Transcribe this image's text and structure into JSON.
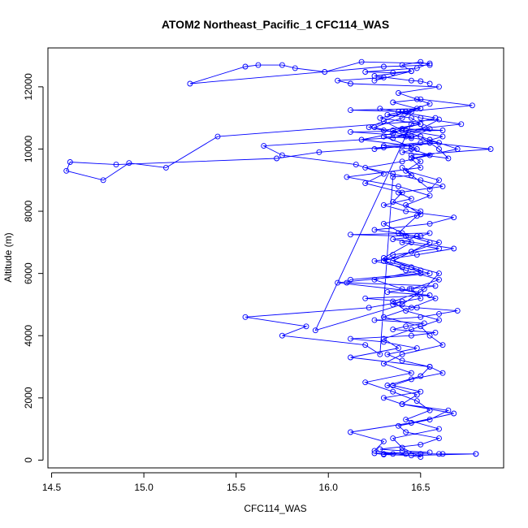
{
  "chart_data": {
    "type": "line",
    "title": "ATOM2 Northeast_Pacific_1 CFC114_WAS",
    "xlabel": "CFC114_WAS",
    "ylabel": "Altitude (m)",
    "xlim": [
      14.48,
      16.95
    ],
    "ylim": [
      -250,
      13250
    ],
    "x_ticks": [
      14.5,
      15.0,
      15.5,
      16.0,
      16.5
    ],
    "x_tick_labels": [
      "14.5",
      "15.0",
      "15.5",
      "16.0",
      "16.5"
    ],
    "y_ticks": [
      0,
      2000,
      4000,
      6000,
      8000,
      10000,
      12000
    ],
    "y_tick_labels": [
      "0",
      "2000",
      "4000",
      "6000",
      "8000",
      "10000",
      "12000"
    ],
    "grid": false,
    "legend": "none",
    "series_color": "#0000ff",
    "marker": "open-circle",
    "series": [
      {
        "x": [
          16.8,
          16.6,
          16.5,
          16.42,
          16.35,
          16.3,
          16.5,
          16.62,
          16.8,
          16.45,
          16.3,
          16.25,
          16.55,
          16.4,
          16.28,
          16.5,
          16.6,
          16.42,
          16.38,
          16.55,
          16.65,
          16.4,
          16.3,
          16.5,
          16.35,
          16.45,
          16.62,
          16.55,
          16.4,
          16.32,
          16.48,
          16.3,
          16.12,
          16.45,
          16.58,
          16.35,
          16.42,
          16.52,
          16.25,
          16.5,
          16.6,
          16.7,
          16.48,
          16.35,
          16.4,
          16.2,
          16.55,
          16.32,
          16.44,
          16.58,
          16.1,
          16.12,
          16.5,
          16.45,
          16.3,
          16.35,
          16.6,
          16.4,
          16.48,
          16.25,
          16.55,
          16.68,
          16.42,
          16.3,
          16.45,
          16.38,
          16.62,
          16.5,
          16.35,
          16.2,
          16.4,
          16.55,
          16.45,
          16.3,
          16.5,
          16.62,
          16.42,
          16.72,
          16.5,
          16.38,
          16.28,
          16.58,
          16.45,
          15.93,
          16.4,
          16.52,
          16.6,
          16.3,
          16.45,
          16.42,
          16.12,
          16.55,
          16.5,
          16.35,
          16.68,
          16.48,
          16.25,
          16.4,
          16.55,
          16.05,
          16.5,
          16.35,
          16.42,
          16.6,
          16.45,
          16.3,
          16.38,
          16.12,
          16.55,
          16.5,
          16.32,
          16.48,
          16.4,
          16.68,
          16.45,
          16.12,
          16.3,
          16.25,
          16.5,
          16.4,
          16.35,
          16.6,
          16.42,
          16.55,
          16.48,
          16.35,
          16.2,
          16.45,
          16.3,
          16.4,
          16.62,
          16.55,
          16.5,
          16.3,
          16.45,
          16.58,
          16.4,
          16.25,
          16.5,
          16.35,
          16.45,
          16.6,
          16.4,
          16.3,
          16.5,
          16.42,
          16.55,
          16.38,
          16.1,
          16.5,
          16.45,
          16.7,
          16.55,
          16.4,
          16.3,
          16.42,
          16.78,
          16.5,
          16.35,
          16.48,
          16.4,
          16.25,
          16.45,
          15.65,
          15.75,
          16.15,
          16.3,
          16.2,
          16.4,
          16.35,
          16.5,
          16.48,
          16.38,
          16.55,
          16.45,
          16.3,
          16.42,
          16.6,
          16.45,
          16.5,
          16.22,
          15.55,
          15.88,
          15.75,
          16.2,
          16.28,
          16.35,
          16.45,
          16.4,
          16.55,
          16.6,
          16.42,
          16.5,
          16.45,
          16.88,
          16.55,
          16.4,
          15.95,
          15.72,
          14.85,
          14.6,
          14.58,
          14.78,
          14.92,
          15.12,
          15.4,
          16.6,
          16.52,
          16.35,
          16.55,
          16.45,
          16.3,
          16.48,
          16.4,
          16.65,
          16.6,
          16.55,
          16.5,
          16.12,
          16.62,
          16.4,
          16.35,
          16.18,
          16.45,
          16.3,
          16.25,
          16.6,
          16.42,
          16.35,
          16.5,
          16.28,
          16.45,
          16.12,
          16.5,
          16.4,
          16.32,
          16.45,
          16.5,
          16.3,
          16.22,
          16.42,
          16.55,
          16.48,
          16.38,
          16.6,
          16.12,
          16.05,
          16.3,
          16.25,
          16.45,
          16.4,
          16.5,
          16.55,
          16.3,
          15.25,
          15.55,
          15.62,
          15.75,
          15.82,
          15.98,
          16.18,
          16.55,
          16.48,
          16.2,
          16.35,
          16.45,
          16.25,
          16.45,
          16.5,
          16.55
        ],
        "y": [
          200,
          200,
          200,
          200,
          200,
          200,
          200,
          200,
          200,
          150,
          180,
          220,
          250,
          300,
          350,
          500,
          700,
          900,
          1100,
          1300,
          1600,
          1800,
          2000,
          2200,
          2400,
          2600,
          2800,
          3000,
          3200,
          3400,
          3600,
          3800,
          3900,
          4000,
          4100,
          4200,
          4300,
          4400,
          4500,
          4600,
          4700,
          4800,
          4900,
          5000,
          5100,
          5200,
          5300,
          5400,
          5500,
          5600,
          5700,
          5800,
          6000,
          6200,
          6400,
          6600,
          6800,
          7000,
          7200,
          7400,
          7600,
          7800,
          8000,
          8200,
          8400,
          8600,
          8800,
          9000,
          9200,
          9400,
          9600,
          9800,
          10000,
          10100,
          10200,
          10400,
          10600,
          10800,
          11000,
          11200,
          11300,
          11000,
          10800,
          4170,
          5000,
          5500,
          6000,
          6500,
          7000,
          7200,
          7250,
          7300,
          7200,
          7100,
          6800,
          6600,
          6400,
          6200,
          6000,
          5700,
          5400,
          5100,
          4800,
          4500,
          4200,
          3900,
          3600,
          3300,
          3000,
          2700,
          2400,
          2100,
          1800,
          1500,
          1200,
          900,
          600,
          300,
          100,
          400,
          700,
          1000,
          1300,
          1600,
          1900,
          2200,
          2500,
          2800,
          3100,
          3400,
          3700,
          4000,
          4300,
          4600,
          4900,
          5200,
          5500,
          5800,
          6100,
          6400,
          6700,
          7000,
          7300,
          7600,
          7900,
          8200,
          8500,
          8800,
          9100,
          9400,
          9700,
          10000,
          10300,
          10600,
          10900,
          11200,
          11400,
          11600,
          11500,
          11300,
          11000,
          10700,
          10400,
          10100,
          9800,
          9500,
          9200,
          8900,
          8600,
          8300,
          8000,
          7850,
          7300,
          7000,
          6700,
          6400,
          6100,
          5800,
          5500,
          5200,
          4900,
          4600,
          4300,
          4000,
          3700,
          3400,
          9100,
          9150,
          9400,
          8700,
          9000,
          9300,
          9600,
          9800,
          10000,
          10200,
          10100,
          9900,
          9700,
          9500,
          9580,
          9300,
          9000,
          9550,
          9400,
          10400,
          10950,
          10700,
          10350,
          10650,
          10350,
          10400,
          10000,
          9900,
          9700,
          10000,
          10200,
          10400,
          10550,
          10600,
          10650,
          10500,
          10300,
          10100,
          10050,
          10000,
          10200,
          10400,
          10600,
          10800,
          11000,
          11200,
          11250,
          11300,
          11200,
          11100,
          11000,
          10800,
          10600,
          10700,
          11200,
          11450,
          11600,
          11800,
          12000,
          12100,
          12200,
          12300,
          12200,
          12500,
          12700,
          12800,
          12700,
          12650,
          12100,
          12650,
          12700,
          12700,
          12600,
          12480,
          12800,
          12750,
          12600,
          12480,
          12450,
          12500,
          12350,
          12200,
          12180,
          12100
        ]
      }
    ]
  }
}
